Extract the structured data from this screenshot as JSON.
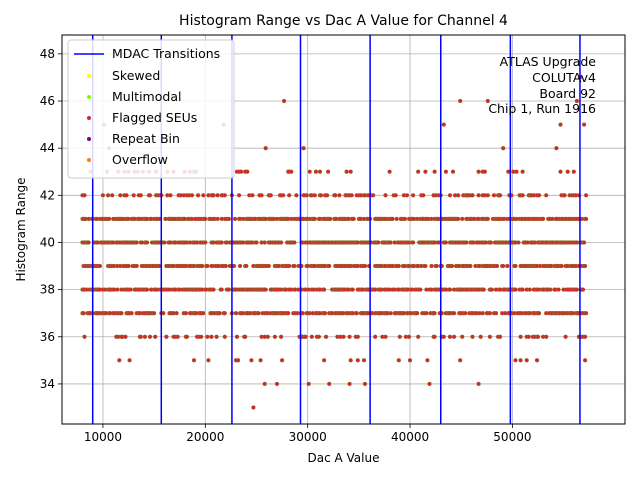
{
  "chart_data": {
    "type": "scatter",
    "title": "Histogram Range vs Dac A Value for Channel 4",
    "xlabel": "Dac A Value",
    "ylabel": "Histogram Range",
    "xlim": [
      6000,
      61000
    ],
    "ylim": [
      32.3,
      48.8
    ],
    "xticks": [
      10000,
      20000,
      30000,
      40000,
      50000
    ],
    "yticks": [
      34,
      36,
      38,
      40,
      42,
      44,
      46,
      48
    ],
    "grid": true,
    "legend_position": "top-left",
    "mdac_transitions": [
      9000,
      15700,
      22600,
      29300,
      36100,
      43000,
      49800,
      56600
    ],
    "series": [
      {
        "name": "MDAC Transitions",
        "marker": "line",
        "color": "#0000ff"
      },
      {
        "name": "Skewed",
        "marker": "dot",
        "color": "#ffff00"
      },
      {
        "name": "Multimodal",
        "marker": "dot",
        "color": "#7cfc00"
      },
      {
        "name": "Flagged SEUs",
        "marker": "dot",
        "color": "#d62728"
      },
      {
        "name": "Repeat Bin",
        "marker": "dot",
        "color": "#800080"
      },
      {
        "name": "Overflow",
        "marker": "dot",
        "color": "#ff7f0e"
      }
    ],
    "annotation": [
      "ATLAS Upgrade",
      "COLUTAv4",
      "Board 92",
      "Chip 1, Run 1916"
    ],
    "x_range": [
      8000,
      57200
    ],
    "core_ranges": [
      39,
      40,
      41
    ],
    "outlier_points": [
      {
        "x": 24700,
        "y": 33
      },
      {
        "x": 27700,
        "y": 46
      },
      {
        "x": 21800,
        "y": 45
      },
      {
        "x": 10100,
        "y": 45
      },
      {
        "x": 11600,
        "y": 35
      },
      {
        "x": 18900,
        "y": 35
      },
      {
        "x": 25800,
        "y": 34
      },
      {
        "x": 27000,
        "y": 34
      },
      {
        "x": 30100,
        "y": 34
      },
      {
        "x": 32100,
        "y": 34
      },
      {
        "x": 34100,
        "y": 34
      },
      {
        "x": 35600,
        "y": 34
      },
      {
        "x": 41900,
        "y": 34
      },
      {
        "x": 46700,
        "y": 34
      },
      {
        "x": 44900,
        "y": 46
      },
      {
        "x": 47600,
        "y": 46
      },
      {
        "x": 43300,
        "y": 45
      },
      {
        "x": 54700,
        "y": 45
      },
      {
        "x": 57000,
        "y": 45
      },
      {
        "x": 56600,
        "y": 47
      },
      {
        "x": 56300,
        "y": 46
      },
      {
        "x": 29600,
        "y": 44
      },
      {
        "x": 49100,
        "y": 44
      },
      {
        "x": 54300,
        "y": 44
      },
      {
        "x": 10600,
        "y": 44
      },
      {
        "x": 25900,
        "y": 44
      }
    ]
  }
}
